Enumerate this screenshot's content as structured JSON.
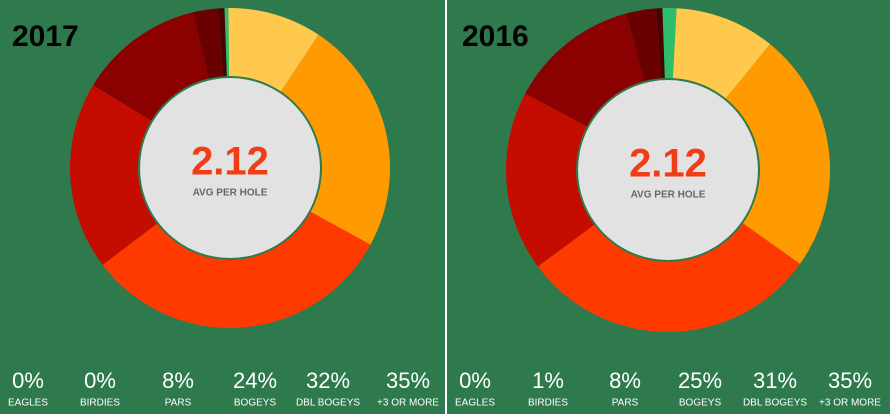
{
  "chart_data": [
    {
      "type": "donut",
      "title": "2017",
      "center_value": 2.12,
      "center_label": "AVG PER HOLE",
      "values": [
        0.4,
        9.5,
        23.6,
        31.7,
        19,
        12.6,
        2.6,
        0.6
      ],
      "colors": [
        "#2ebd6b",
        "#ffc94d",
        "#ff9a00",
        "#ff3a00",
        "#c40c00",
        "#8b0000",
        "#6b0000",
        "#4a0000"
      ],
      "stats": {
        "categories": [
          "EAGLES",
          "BIRDIES",
          "PARS",
          "BOGEYS",
          "DBL BOGEYS",
          "+3 OR MORE"
        ],
        "values": [
          0,
          0,
          8,
          24,
          32,
          35
        ],
        "value_labels": [
          "0%",
          "0%",
          "8%",
          "24%",
          "32%",
          "35%"
        ]
      }
    },
    {
      "type": "donut",
      "title": "2016",
      "center_value": 2.12,
      "center_label": "AVG PER HOLE",
      "values": [
        1.4,
        10,
        24,
        30,
        18,
        13,
        3,
        0.6
      ],
      "colors": [
        "#2ebd6b",
        "#ffc94d",
        "#ff9a00",
        "#ff3a00",
        "#c40c00",
        "#8b0000",
        "#6b0000",
        "#4a0000"
      ],
      "stats": {
        "categories": [
          "EAGLES",
          "BIRDIES",
          "PARS",
          "BOGEYS",
          "DBL BOGEYS",
          "+3 OR MORE"
        ],
        "values": [
          0,
          1,
          8,
          25,
          31,
          35
        ],
        "value_labels": [
          "0%",
          "1%",
          "8%",
          "25%",
          "31%",
          "35%"
        ]
      }
    }
  ]
}
